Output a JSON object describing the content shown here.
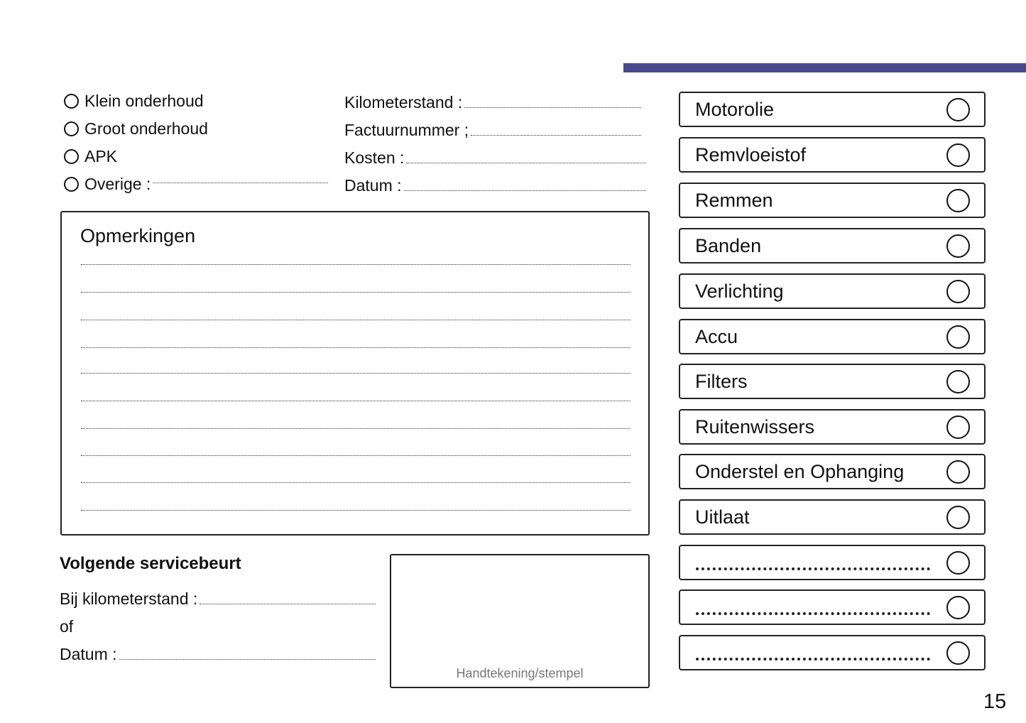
{
  "accent_color": "#464a8c",
  "service_types": [
    {
      "label": "Klein onderhoud"
    },
    {
      "label": "Groot onderhoud"
    },
    {
      "label": "APK"
    },
    {
      "label": "Overige :"
    }
  ],
  "fields": {
    "kilometerstand": "Kilometerstand :",
    "factuurnummer": "Factuurnummer ;",
    "kosten": "Kosten :",
    "datum": "Datum :"
  },
  "remarks": {
    "title": "Opmerkingen"
  },
  "next_service": {
    "title": "Volgende servicebeurt",
    "km_label": "Bij kilometerstand :",
    "or_label": "of",
    "date_label": "Datum :"
  },
  "signature": {
    "label": "Handtekening/stempel"
  },
  "checklist": [
    {
      "label": "Motorolie"
    },
    {
      "label": "Remvloeistof"
    },
    {
      "label": "Remmen"
    },
    {
      "label": "Banden"
    },
    {
      "label": "Verlichting"
    },
    {
      "label": "Accu"
    },
    {
      "label": "Filters"
    },
    {
      "label": "Ruitenwissers"
    },
    {
      "label": "Onderstel en Ophanging"
    },
    {
      "label": "Uitlaat"
    },
    {
      "label": ""
    },
    {
      "label": ""
    },
    {
      "label": ""
    }
  ],
  "page_number": "15"
}
